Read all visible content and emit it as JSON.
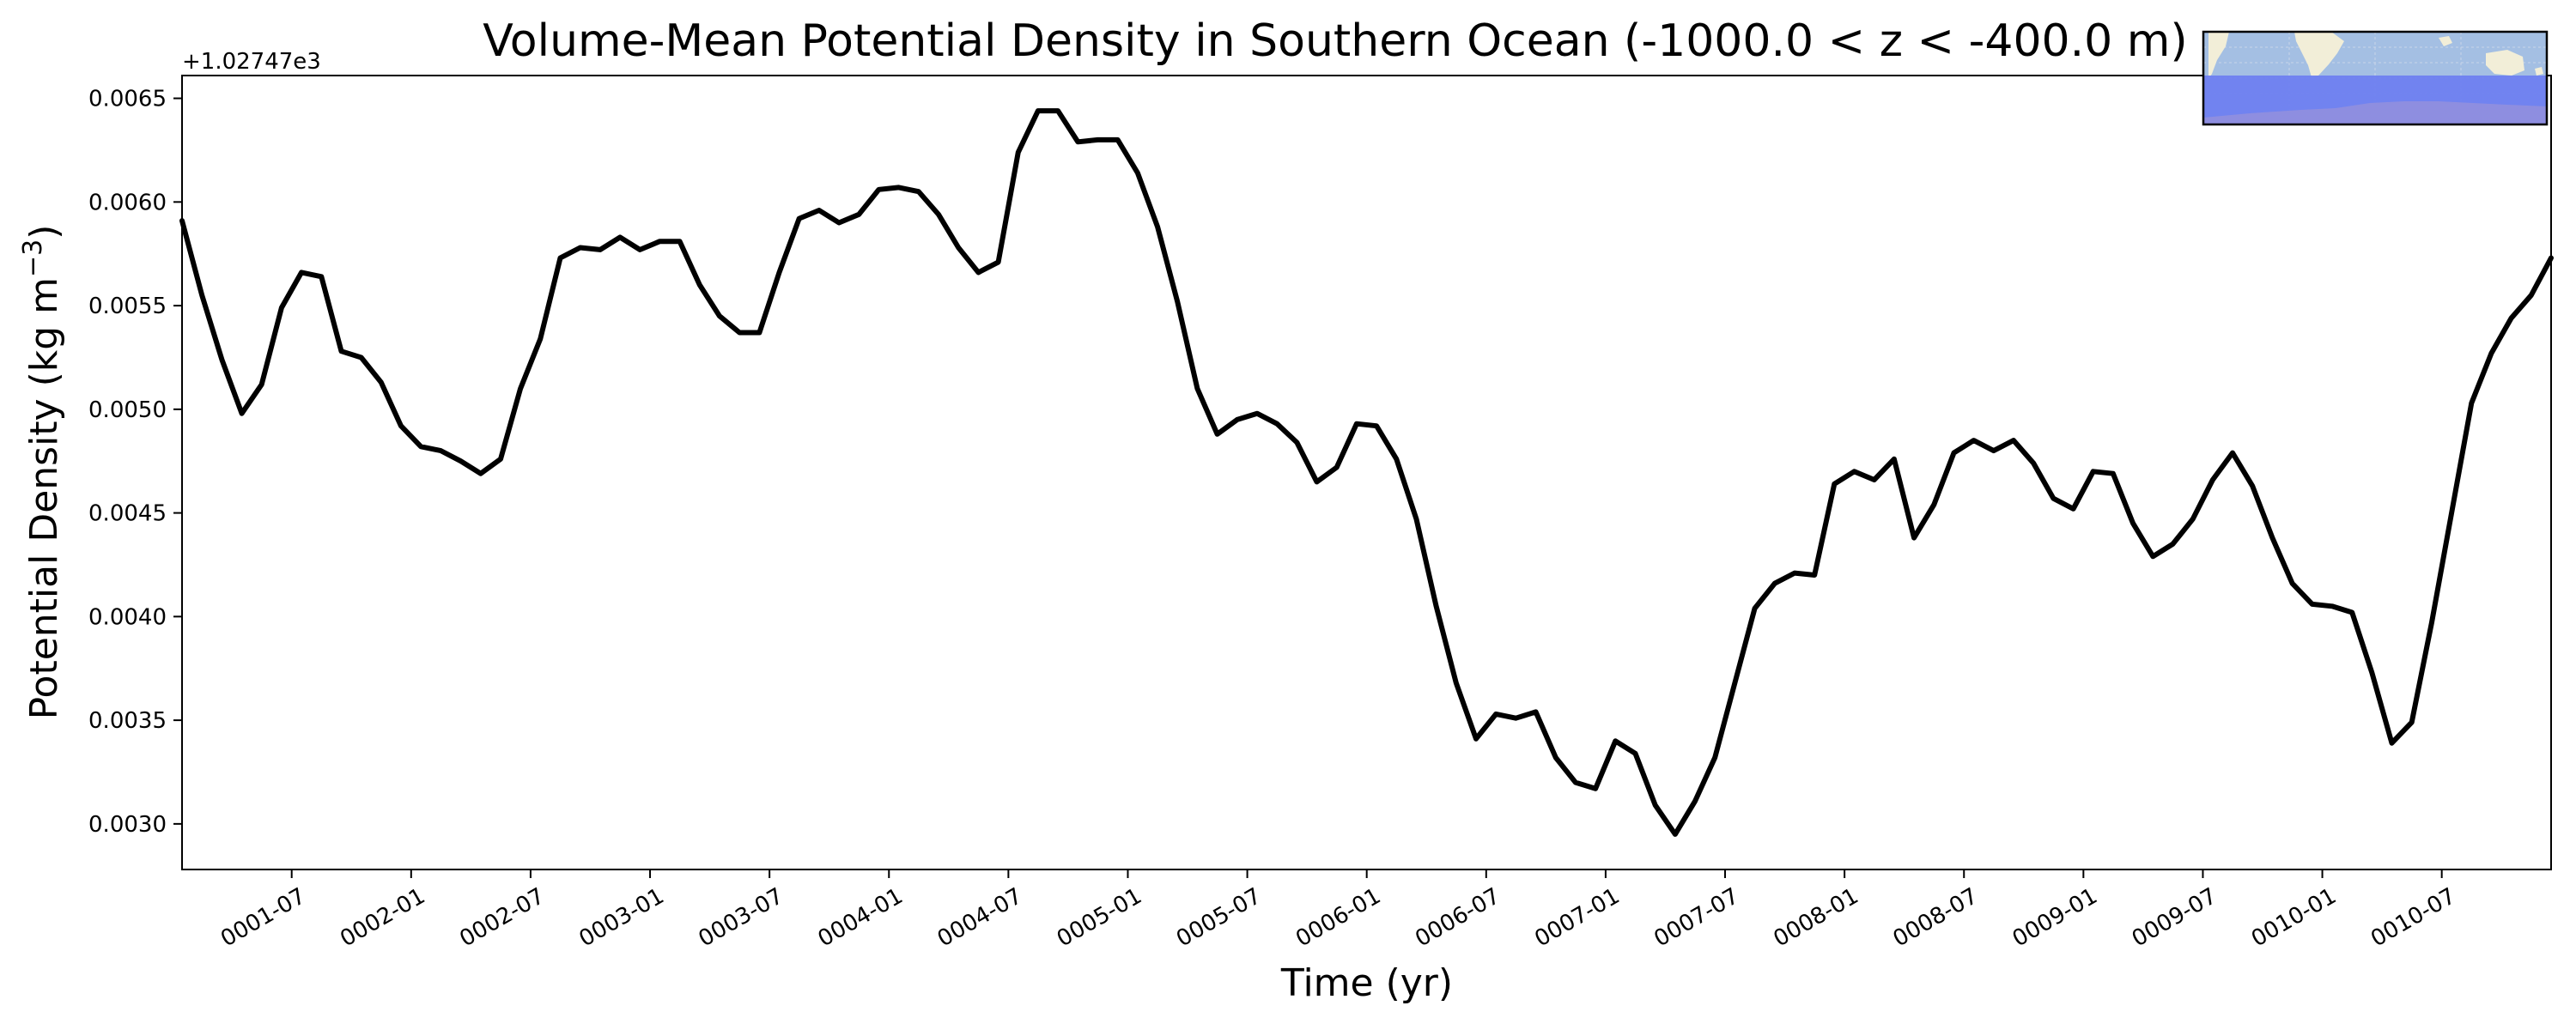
{
  "chart_data": {
    "type": "line",
    "title": "Volume-Mean Potential Density in Southern Ocean (-1000.0 < z < -400.0 m)",
    "xlabel": "Time (yr)",
    "ylabel": "Potential Density (kg m$^{-3}$)",
    "ylabel_text": "Potential Density (kg m",
    "ylabel_sup": "−3",
    "ylabel_close": ")",
    "offset_text": "+1.02747e3",
    "offset_value": 1027.47,
    "ylim": [
      0.00278,
      0.00661
    ],
    "xlim": [
      "0001-01-16",
      "0010-12-16"
    ],
    "grid": false,
    "yticks": [
      0.003,
      0.0035,
      0.004,
      0.0045,
      0.005,
      0.0055,
      0.006,
      0.0065
    ],
    "ytick_labels": [
      "0.0030",
      "0.0035",
      "0.0040",
      "0.0045",
      "0.0050",
      "0.0055",
      "0.0060",
      "0.0065"
    ],
    "xticks": [
      "0001-07",
      "0002-01",
      "0002-07",
      "0003-01",
      "0003-07",
      "0004-01",
      "0004-07",
      "0005-01",
      "0005-07",
      "0006-01",
      "0006-07",
      "0007-01",
      "0007-07",
      "0008-01",
      "0008-07",
      "0009-01",
      "0009-07",
      "0010-01",
      "0010-07"
    ],
    "series": [
      {
        "color": "#000000",
        "x": [
          "0001-01",
          "0001-02",
          "0001-03",
          "0001-04",
          "0001-05",
          "0001-06",
          "0001-07",
          "0001-08",
          "0001-09",
          "0001-10",
          "0001-11",
          "0001-12",
          "0002-01",
          "0002-02",
          "0002-03",
          "0002-04",
          "0002-05",
          "0002-06",
          "0002-07",
          "0002-08",
          "0002-09",
          "0002-10",
          "0002-11",
          "0002-12",
          "0003-01",
          "0003-02",
          "0003-03",
          "0003-04",
          "0003-05",
          "0003-06",
          "0003-07",
          "0003-08",
          "0003-09",
          "0003-10",
          "0003-11",
          "0003-12",
          "0004-01",
          "0004-02",
          "0004-03",
          "0004-04",
          "0004-05",
          "0004-06",
          "0004-07",
          "0004-08",
          "0004-09",
          "0004-10",
          "0004-11",
          "0004-12",
          "0005-01",
          "0005-02",
          "0005-03",
          "0005-04",
          "0005-05",
          "0005-06",
          "0005-07",
          "0005-08",
          "0005-09",
          "0005-10",
          "0005-11",
          "0005-12",
          "0006-01",
          "0006-02",
          "0006-03",
          "0006-04",
          "0006-05",
          "0006-06",
          "0006-07",
          "0006-08",
          "0006-09",
          "0006-10",
          "0006-11",
          "0006-12",
          "0007-01",
          "0007-02",
          "0007-03",
          "0007-04",
          "0007-05",
          "0007-06",
          "0007-07",
          "0007-08",
          "0007-09",
          "0007-10",
          "0007-11",
          "0007-12",
          "0008-01",
          "0008-02",
          "0008-03",
          "0008-04",
          "0008-05",
          "0008-06",
          "0008-07",
          "0008-08",
          "0008-09",
          "0008-10",
          "0008-11",
          "0008-12",
          "0009-01",
          "0009-02",
          "0009-03",
          "0009-04",
          "0009-05",
          "0009-06",
          "0009-07",
          "0009-08",
          "0009-09",
          "0009-10",
          "0009-11",
          "0009-12",
          "0010-01",
          "0010-02",
          "0010-03",
          "0010-04",
          "0010-05",
          "0010-06",
          "0010-07",
          "0010-08",
          "0010-09",
          "0010-10",
          "0010-11",
          "0010-12"
        ],
        "values": [
          0.00591,
          0.00555,
          0.00524,
          0.00498,
          0.00512,
          0.00549,
          0.00566,
          0.00564,
          0.00528,
          0.00525,
          0.00513,
          0.00492,
          0.00482,
          0.0048,
          0.00475,
          0.00469,
          0.00476,
          0.0051,
          0.00534,
          0.00573,
          0.00578,
          0.00577,
          0.00583,
          0.00577,
          0.00581,
          0.00581,
          0.0056,
          0.00545,
          0.00537,
          0.00537,
          0.00566,
          0.00592,
          0.00596,
          0.0059,
          0.00594,
          0.00606,
          0.00607,
          0.00605,
          0.00594,
          0.00578,
          0.00566,
          0.00571,
          0.00624,
          0.00644,
          0.00644,
          0.00629,
          0.0063,
          0.0063,
          0.00614,
          0.00588,
          0.00552,
          0.0051,
          0.00488,
          0.00495,
          0.00498,
          0.00493,
          0.00484,
          0.00465,
          0.00472,
          0.00493,
          0.00492,
          0.00476,
          0.00447,
          0.00405,
          0.00368,
          0.00341,
          0.00353,
          0.00351,
          0.00354,
          0.00332,
          0.0032,
          0.00317,
          0.0034,
          0.00334,
          0.00309,
          0.00295,
          0.00311,
          0.00332,
          0.00368,
          0.00404,
          0.00416,
          0.00421,
          0.0042,
          0.00464,
          0.0047,
          0.00466,
          0.00476,
          0.00438,
          0.00454,
          0.00479,
          0.00485,
          0.0048,
          0.00485,
          0.00474,
          0.00457,
          0.00452,
          0.0047,
          0.00469,
          0.00445,
          0.00429,
          0.00435,
          0.00447,
          0.00466,
          0.00479,
          0.00463,
          0.00438,
          0.00416,
          0.00406,
          0.00405,
          0.00402,
          0.00373,
          0.00339,
          0.00349,
          0.00397,
          0.0045,
          0.00503,
          0.00527,
          0.00544,
          0.00555,
          0.00573
        ]
      }
    ]
  },
  "inset_map": {
    "ocean_color": "#a4bfe3",
    "land_color": "#f2eed8",
    "region_color": "#6f7ff0",
    "antarctica_color": "#8e8ee0"
  }
}
